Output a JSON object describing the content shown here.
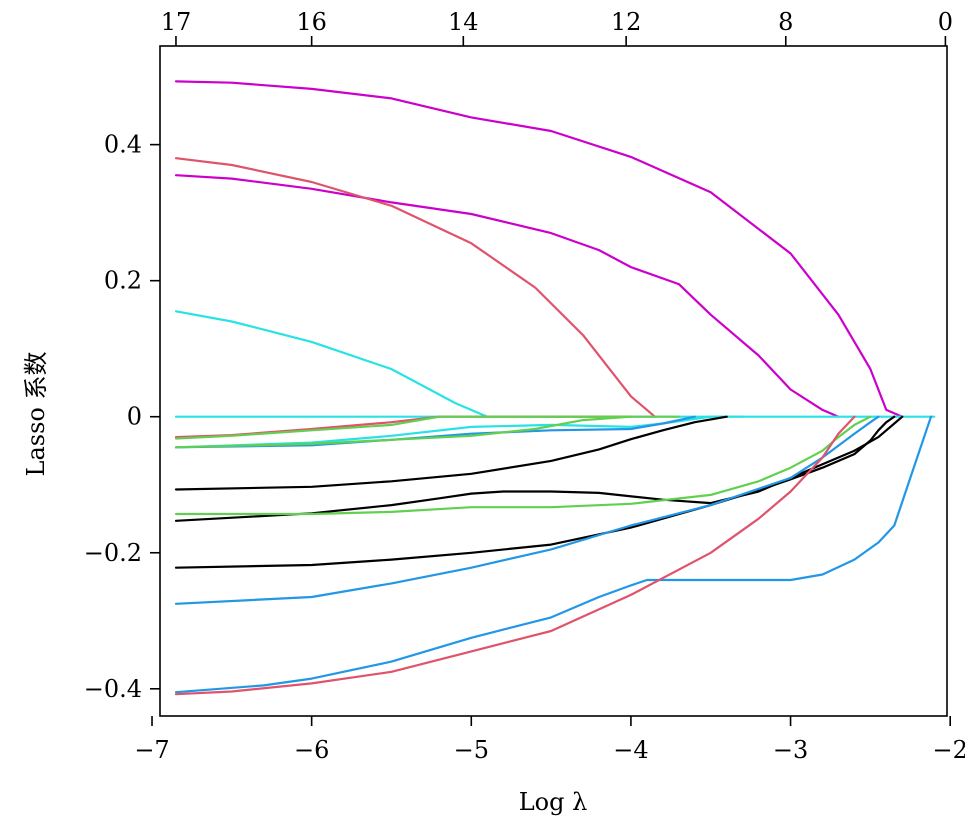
{
  "chart_data": {
    "type": "line",
    "xlabel": "Log λ",
    "ylabel": "Lasso 系数",
    "xlim": [
      -6.95,
      -2.02
    ],
    "ylim": [
      -0.44,
      0.545
    ],
    "x_ticks": [
      -7,
      -6,
      -5,
      -4,
      -3,
      -2
    ],
    "x_tick_labels": [
      "−7",
      "−6",
      "−5",
      "−4",
      "−3",
      "−2"
    ],
    "y_ticks": [
      -0.4,
      -0.2,
      0,
      0.2,
      0.4
    ],
    "y_tick_labels": [
      "−0.4",
      "−0.2",
      "0",
      "0.2",
      "0.4"
    ],
    "top_ticks": [
      -6.85,
      -6.0,
      -5.05,
      -4.03,
      -3.03,
      -2.03
    ],
    "top_tick_labels": [
      "17",
      "16",
      "14",
      "12",
      "8",
      "0"
    ],
    "grid": false,
    "series": [
      {
        "color": "#cc00cc",
        "x": [
          -6.85,
          -6.5,
          -6.0,
          -5.5,
          -5.0,
          -4.5,
          -4.0,
          -3.5,
          -3.0,
          -2.7,
          -2.5,
          -2.4,
          -2.3
        ],
        "y": [
          0.493,
          0.491,
          0.482,
          0.468,
          0.44,
          0.42,
          0.382,
          0.33,
          0.24,
          0.15,
          0.07,
          0.01,
          0.0
        ]
      },
      {
        "color": "#cc00cc",
        "x": [
          -6.85,
          -6.5,
          -6.0,
          -5.5,
          -5.0,
          -4.5,
          -4.2,
          -4.0,
          -3.7,
          -3.5,
          -3.2,
          -3.0,
          -2.8,
          -2.7
        ],
        "y": [
          0.355,
          0.35,
          0.335,
          0.315,
          0.298,
          0.27,
          0.245,
          0.22,
          0.195,
          0.15,
          0.09,
          0.04,
          0.01,
          0.0
        ]
      },
      {
        "color": "#df536b",
        "x": [
          -6.85,
          -6.5,
          -6.0,
          -5.5,
          -5.0,
          -4.6,
          -4.3,
          -4.0,
          -3.85
        ],
        "y": [
          0.38,
          0.37,
          0.345,
          0.31,
          0.255,
          0.19,
          0.12,
          0.03,
          0.0
        ]
      },
      {
        "color": "#28e2e5",
        "x": [
          -6.85,
          -6.5,
          -6.0,
          -5.5,
          -5.1,
          -4.9
        ],
        "y": [
          0.155,
          0.14,
          0.11,
          0.07,
          0.02,
          0.0
        ]
      },
      {
        "color": "#28e2e5",
        "x": [
          -6.85,
          -2.1
        ],
        "y": [
          0.0,
          0.0
        ]
      },
      {
        "color": "#df536b",
        "x": [
          -6.85,
          -6.5,
          -6.0,
          -5.5,
          -5.2,
          -4.0
        ],
        "y": [
          -0.03,
          -0.027,
          -0.018,
          -0.008,
          0.0,
          0.0
        ]
      },
      {
        "color": "#61d04f",
        "x": [
          -6.85,
          -6.5,
          -6.0,
          -5.5,
          -5.2,
          -4.0
        ],
        "y": [
          -0.032,
          -0.028,
          -0.02,
          -0.012,
          0.0,
          0.0
        ]
      },
      {
        "color": "#28e2e5",
        "x": [
          -6.85,
          -6.0,
          -5.5,
          -5.0,
          -4.5,
          -4.0,
          -3.8,
          -3.5,
          -3.3
        ],
        "y": [
          -0.045,
          -0.038,
          -0.028,
          -0.015,
          -0.012,
          -0.015,
          -0.01,
          0.0,
          0.0
        ]
      },
      {
        "color": "#2297e6",
        "x": [
          -6.85,
          -6.0,
          -5.5,
          -5.0,
          -4.5,
          -4.0,
          -3.8,
          -3.6
        ],
        "y": [
          -0.045,
          -0.042,
          -0.034,
          -0.025,
          -0.02,
          -0.018,
          -0.01,
          0.0
        ]
      },
      {
        "color": "#61d04f",
        "x": [
          -6.85,
          -6.0,
          -5.5,
          -5.0,
          -4.6,
          -4.3,
          -4.0,
          -3.7
        ],
        "y": [
          -0.045,
          -0.04,
          -0.034,
          -0.028,
          -0.018,
          -0.005,
          0.0,
          0.0
        ]
      },
      {
        "color": "#000000",
        "x": [
          -6.85,
          -6.0,
          -5.5,
          -5.0,
          -4.5,
          -4.2,
          -4.0,
          -3.8,
          -3.6,
          -3.4
        ],
        "y": [
          -0.107,
          -0.103,
          -0.095,
          -0.084,
          -0.065,
          -0.048,
          -0.033,
          -0.02,
          -0.008,
          0.0
        ]
      },
      {
        "color": "#000000",
        "x": [
          -6.85,
          -6.0,
          -5.5,
          -5.2,
          -5.0,
          -4.8,
          -4.5,
          -4.2,
          -3.8,
          -3.5,
          -3.2,
          -3.0,
          -2.8,
          -2.6,
          -2.45,
          -2.35,
          -2.3
        ],
        "y": [
          -0.153,
          -0.142,
          -0.13,
          -0.12,
          -0.113,
          -0.11,
          -0.11,
          -0.112,
          -0.122,
          -0.127,
          -0.11,
          -0.09,
          -0.07,
          -0.05,
          -0.03,
          -0.01,
          0.0
        ]
      },
      {
        "color": "#61d04f",
        "x": [
          -6.85,
          -6.0,
          -5.5,
          -5.0,
          -4.5,
          -4.0,
          -3.5,
          -3.2,
          -3.0,
          -2.8,
          -2.7,
          -2.6,
          -2.5
        ],
        "y": [
          -0.143,
          -0.143,
          -0.14,
          -0.133,
          -0.133,
          -0.128,
          -0.115,
          -0.095,
          -0.075,
          -0.05,
          -0.03,
          -0.012,
          0.0
        ]
      },
      {
        "color": "#000000",
        "x": [
          -6.85,
          -6.0,
          -5.5,
          -5.0,
          -4.5,
          -4.0,
          -3.5,
          -3.2,
          -3.0,
          -2.8,
          -2.6,
          -2.5,
          -2.45,
          -2.4,
          -2.35
        ],
        "y": [
          -0.222,
          -0.218,
          -0.21,
          -0.2,
          -0.188,
          -0.163,
          -0.13,
          -0.108,
          -0.092,
          -0.075,
          -0.055,
          -0.035,
          -0.02,
          -0.008,
          0.0
        ]
      },
      {
        "color": "#2297e6",
        "x": [
          -6.85,
          -6.0,
          -5.5,
          -5.0,
          -4.5,
          -4.0,
          -3.5,
          -3.0,
          -2.8,
          -2.6,
          -2.5,
          -2.45
        ],
        "y": [
          -0.275,
          -0.265,
          -0.245,
          -0.222,
          -0.195,
          -0.16,
          -0.13,
          -0.09,
          -0.06,
          -0.025,
          -0.008,
          0.0
        ]
      },
      {
        "color": "#2297e6",
        "x": [
          -6.85,
          -6.3,
          -6.0,
          -5.5,
          -5.0,
          -4.5,
          -4.2,
          -4.0,
          -3.9,
          -3.5,
          -3.0,
          -2.8,
          -2.6,
          -2.45,
          -2.35,
          -2.25,
          -2.12
        ],
        "y": [
          -0.405,
          -0.395,
          -0.385,
          -0.36,
          -0.325,
          -0.295,
          -0.265,
          -0.248,
          -0.24,
          -0.24,
          -0.24,
          -0.232,
          -0.21,
          -0.185,
          -0.16,
          -0.09,
          0.0
        ]
      },
      {
        "color": "#df536b",
        "x": [
          -6.85,
          -6.5,
          -6.0,
          -5.5,
          -5.0,
          -4.5,
          -4.0,
          -3.5,
          -3.2,
          -3.0,
          -2.8,
          -2.7,
          -2.6
        ],
        "y": [
          -0.408,
          -0.404,
          -0.392,
          -0.375,
          -0.345,
          -0.315,
          -0.262,
          -0.2,
          -0.15,
          -0.11,
          -0.06,
          -0.025,
          0.0
        ]
      }
    ]
  }
}
